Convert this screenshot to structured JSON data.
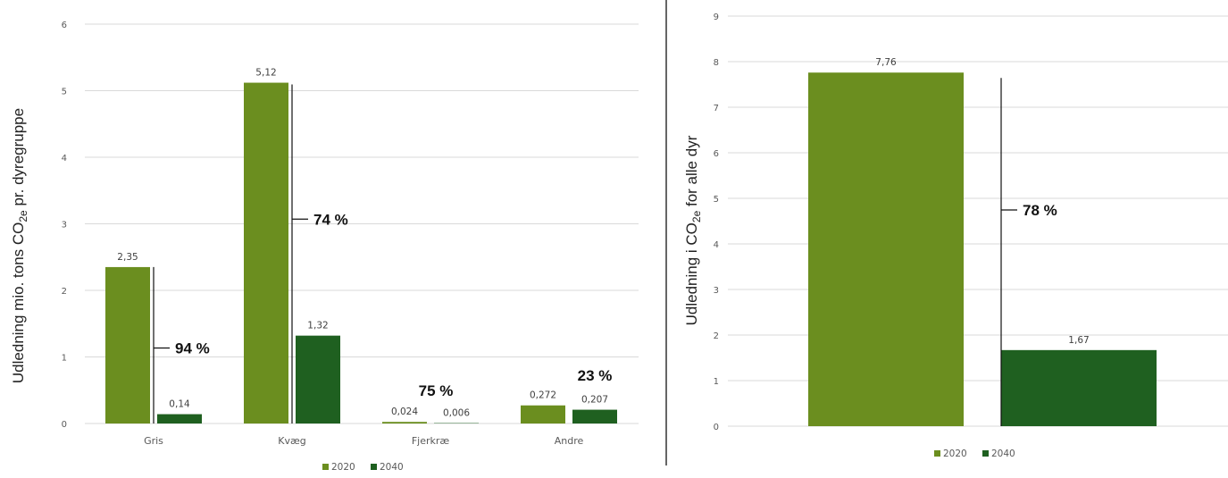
{
  "chart_data": [
    {
      "type": "bar",
      "ylabel": "Udledning mio. tons CO2e pr. dyregruppe",
      "ylabel_parts": {
        "before": "Udledning mio. tons CO",
        "sub": "2e",
        "after": " pr. dyregruppe"
      },
      "ylim": [
        0,
        6
      ],
      "yticks": [
        "0",
        "1",
        "2",
        "3",
        "4",
        "5",
        "6"
      ],
      "grid": true,
      "legend_position": "bottom",
      "categories": [
        "Gris",
        "Kvæg",
        "Fjerkræ",
        "Andre"
      ],
      "series": [
        {
          "name": "2020",
          "color": "#6b8e1f",
          "values": [
            2.35,
            5.12,
            0.024,
            0.272
          ],
          "labels": [
            "2,35",
            "5,12",
            "0,024",
            "0,272"
          ]
        },
        {
          "name": "2040",
          "color": "#1f6020",
          "values": [
            0.14,
            1.32,
            0.006,
            0.207
          ],
          "labels": [
            "0,14",
            "1,32",
            "0,006",
            "0,207"
          ]
        }
      ],
      "annotations": [
        "94 %",
        "74 %",
        "75 %",
        "23 %"
      ]
    },
    {
      "type": "bar",
      "ylabel": "Udledning i CO2e for alle dyr",
      "ylabel_parts": {
        "before": "Udledning i CO",
        "sub": "2e",
        "after": " for alle dyr"
      },
      "ylim": [
        0,
        9
      ],
      "yticks": [
        "0",
        "1",
        "2",
        "3",
        "4",
        "5",
        "6",
        "7",
        "8",
        "9"
      ],
      "grid": true,
      "legend_position": "bottom",
      "categories": [
        ""
      ],
      "series": [
        {
          "name": "2020",
          "color": "#6b8e1f",
          "values": [
            7.76
          ],
          "labels": [
            "7,76"
          ]
        },
        {
          "name": "2040",
          "color": "#1f6020",
          "values": [
            1.67
          ],
          "labels": [
            "1,67"
          ]
        }
      ],
      "annotations": [
        "78 %"
      ]
    }
  ]
}
